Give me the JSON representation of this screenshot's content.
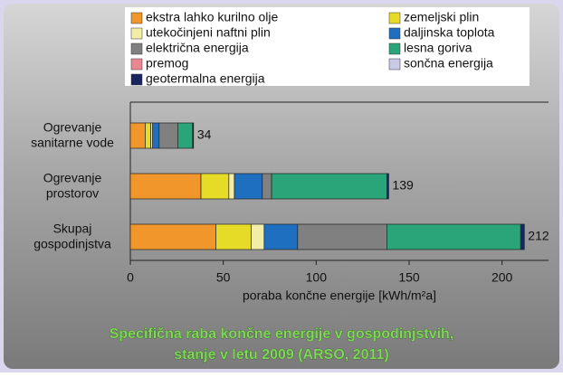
{
  "chart_data": {
    "type": "stacked-barh",
    "title": [
      "Specifična raba končne energije v gospodinjstvih,",
      "stanje v letu 2009 (ARSO, 2011)"
    ],
    "xlabel": "poraba končne energije [kWh/m²a]",
    "categories": [
      [
        "Ogrevanje",
        "sanitarne vode"
      ],
      [
        "Ogrevanje",
        "prostorov"
      ],
      [
        "Skupaj",
        "gospodinjstva"
      ]
    ],
    "series": [
      {
        "name": "ekstra lahko kurilno olje",
        "color": "#f0962a",
        "values": [
          8,
          38,
          46
        ]
      },
      {
        "name": "zemeljski plin",
        "color": "#e6dc28",
        "values": [
          3,
          15,
          19
        ]
      },
      {
        "name": "utekočinjeni naftni plin",
        "color": "#f2eeaa",
        "values": [
          1,
          3,
          7
        ]
      },
      {
        "name": "daljinska toplota",
        "color": "#1f6fc0",
        "values": [
          3.5,
          15,
          18
        ]
      },
      {
        "name": "električna energija",
        "color": "#808080",
        "values": [
          10,
          5,
          48
        ]
      },
      {
        "name": "lesna goriva",
        "color": "#2aa57a",
        "values": [
          8,
          62,
          72
        ]
      },
      {
        "name": "premog",
        "color": "#e98890",
        "values": [
          0,
          0,
          0
        ]
      },
      {
        "name": "sončna energija",
        "color": "#c8cae6",
        "values": [
          0,
          0,
          0
        ]
      },
      {
        "name": "geotermalna energija",
        "color": "#1a2560",
        "values": [
          0.5,
          1,
          2
        ]
      }
    ],
    "totals": [
      34,
      139,
      212
    ],
    "xlim": [
      0,
      225
    ],
    "xticks": [
      0,
      50,
      100,
      150,
      200
    ]
  }
}
